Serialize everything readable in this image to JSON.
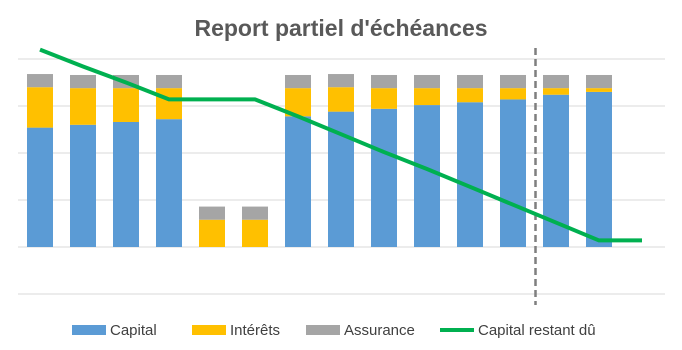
{
  "chart_data": {
    "type": "bar",
    "title": "Report partiel d'échéances",
    "categories": [
      null,
      null,
      null,
      null,
      null,
      null,
      null,
      null,
      null,
      null,
      null,
      null,
      null,
      null,
      null
    ],
    "series": [
      {
        "name": "Capital",
        "type": "bar",
        "color": "#5b9bd5",
        "values": [
          127,
          130,
          133,
          136,
          null,
          null,
          139,
          144,
          147,
          151,
          154,
          157,
          162,
          165,
          null
        ]
      },
      {
        "name": "Intérêts",
        "type": "bar",
        "color": "#ffc000",
        "values": [
          43,
          39,
          36,
          33,
          29,
          29,
          30,
          26,
          22,
          18,
          15,
          12,
          7,
          4,
          null
        ]
      },
      {
        "name": "Assurance",
        "type": "bar",
        "color": "#a5a5a5",
        "values": [
          14,
          14,
          14,
          14,
          14,
          14,
          14,
          14,
          14,
          14,
          14,
          14,
          14,
          14,
          null
        ]
      },
      {
        "name": "Capital restant dû",
        "type": "line",
        "color": "#00b050",
        "values": [
          210,
          192,
          175,
          157,
          157,
          157,
          139,
          120,
          101,
          83,
          64,
          45,
          26,
          7,
          7
        ]
      }
    ],
    "ylim": [
      -50,
      220
    ],
    "yticks": [
      -50,
      0,
      50,
      100,
      150,
      200
    ],
    "grid": true,
    "legend": "bottom"
  }
}
